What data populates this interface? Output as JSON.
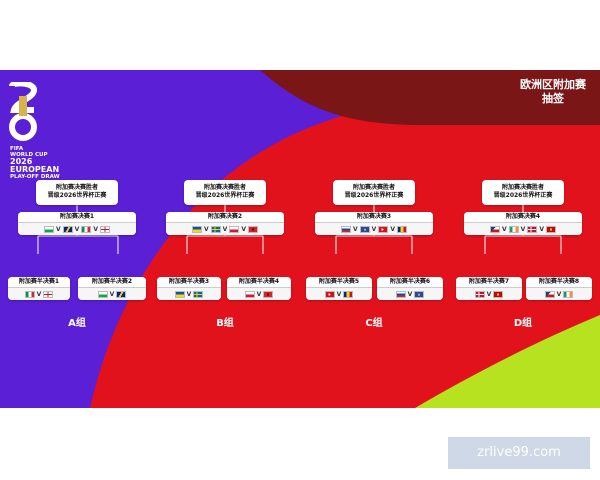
{
  "logo": {
    "numeral": "26",
    "fifa": "FIFA",
    "line1": "WORLD CUP",
    "line2": "2026",
    "line3": "EUROPEAN",
    "line4": "PLAY-OFF DRAW"
  },
  "title": {
    "line1": "欧洲区附加赛",
    "line2": "抽签"
  },
  "winner_label": {
    "line1": "附加赛决赛胜者",
    "line2": "晋级2026世界杯正赛"
  },
  "groups": [
    {
      "name": "A组",
      "final_label": "附加赛决赛1",
      "final_flags": [
        "wales",
        "bosnia",
        "italy",
        "northern-ireland"
      ],
      "semis": [
        {
          "label": "附加赛半决赛1",
          "flags": [
            "italy",
            "northern-ireland"
          ]
        },
        {
          "label": "附加赛半决赛2",
          "flags": [
            "wales",
            "bosnia"
          ]
        }
      ]
    },
    {
      "name": "B组",
      "final_label": "附加赛决赛2",
      "final_flags": [
        "ukraine",
        "sweden",
        "poland",
        "albania"
      ],
      "semis": [
        {
          "label": "附加赛半决赛3",
          "flags": [
            "ukraine",
            "sweden"
          ]
        },
        {
          "label": "附加赛半决赛4",
          "flags": [
            "poland",
            "albania"
          ]
        }
      ]
    },
    {
      "name": "C组",
      "final_label": "附加赛决赛3",
      "final_flags": [
        "slovakia",
        "kosovo",
        "turkey",
        "romania"
      ],
      "semis": [
        {
          "label": "附加赛半决赛5",
          "flags": [
            "turkey",
            "romania"
          ]
        },
        {
          "label": "附加赛半决赛6",
          "flags": [
            "slovakia",
            "kosovo"
          ]
        }
      ]
    },
    {
      "name": "D组",
      "final_label": "附加赛决赛4",
      "final_flags": [
        "czechia",
        "ireland",
        "denmark",
        "north-macedonia"
      ],
      "semis": [
        {
          "label": "附加赛半决赛7",
          "flags": [
            "denmark",
            "north-macedonia"
          ]
        },
        {
          "label": "附加赛半决赛8",
          "flags": [
            "czechia",
            "ireland"
          ]
        }
      ]
    }
  ],
  "vs_symbol": "V",
  "watermark": "zrlive99.com",
  "colors": {
    "purple": "#5b1fd6",
    "red": "#e2121c",
    "dark_red": "#7a1616",
    "lime": "#b6e21f"
  }
}
